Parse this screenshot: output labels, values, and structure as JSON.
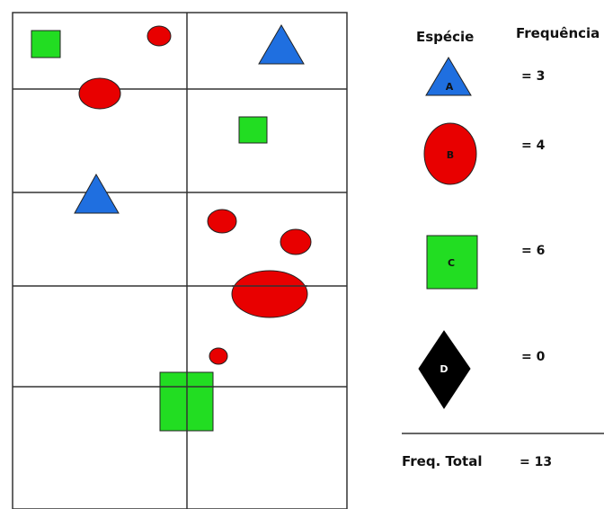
{
  "legend": {
    "species_header": "Espécie",
    "frequency_header": "Frequência",
    "rows": [
      {
        "letter": "A",
        "shape": "triangle-icon",
        "color": "#1f6fe0",
        "frequency": "= 3"
      },
      {
        "letter": "B",
        "shape": "ellipse-icon",
        "color": "#e80000",
        "frequency": "= 4"
      },
      {
        "letter": "C",
        "shape": "square-icon",
        "color": "#22dd22",
        "frequency": "= 6"
      },
      {
        "letter": "D",
        "shape": "diamond-icon",
        "color": "#000000",
        "frequency": "= 0"
      }
    ],
    "total_label": "Freq. Total",
    "total_value": "= 13"
  },
  "plot": {
    "border_color": "#333333",
    "grid_columns": 2,
    "grid_rows": 5
  }
}
